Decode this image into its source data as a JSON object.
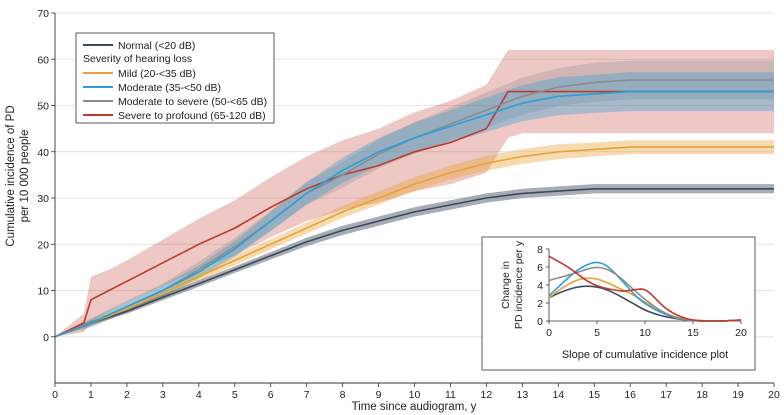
{
  "colors": {
    "normal": "#3b4a5a",
    "mild": "#e8a23a",
    "moderate": "#2b9fd8",
    "modsevere": "#8c8c8c",
    "severe": "#c0392b",
    "grid": "#dcdcdc"
  },
  "chart_data": [
    {
      "type": "line",
      "xlabel": "Time since audiogram, y",
      "ylabel_line1": "Cumulative incidence of PD",
      "ylabel_line2": "per 10 000 people",
      "xlim": [
        0,
        20
      ],
      "ylim": [
        -10,
        70
      ],
      "x_ticks": [
        0,
        1,
        2,
        3,
        4,
        5,
        6,
        7,
        8,
        9,
        10,
        11,
        12,
        13,
        14,
        15,
        16,
        17,
        18,
        19,
        20
      ],
      "y_ticks": [
        0,
        10,
        20,
        30,
        40,
        50,
        60,
        70
      ],
      "grid": "horizontal",
      "legend": {
        "placement": "top-left",
        "heading": "Severity of hearing loss",
        "entries": [
          {
            "key": "normal",
            "label": "Normal (<20 dB)"
          },
          {
            "key": "mild",
            "label": "Mild (20-<35 dB)"
          },
          {
            "key": "moderate",
            "label": "Moderate (35-<50 dB)"
          },
          {
            "key": "modsevere",
            "label": "Moderate to severe (50-<65 dB)"
          },
          {
            "key": "severe",
            "label": "Severe to profound (65-120 dB)"
          }
        ]
      },
      "series": [
        {
          "key": "normal",
          "name": "Normal (<20 dB)",
          "x": [
            0,
            1,
            2,
            3,
            4,
            5,
            6,
            7,
            8,
            9,
            10,
            11,
            12,
            13,
            14,
            15,
            16,
            17,
            18,
            19,
            20
          ],
          "y": [
            0,
            3,
            5.5,
            8.5,
            11.5,
            14.5,
            17.5,
            20.5,
            23,
            25,
            27,
            28.5,
            30,
            31,
            31.5,
            32,
            32,
            32,
            32,
            32,
            32
          ],
          "lower": [
            0,
            2.6,
            5,
            7.9,
            10.8,
            13.8,
            16.7,
            19.6,
            22,
            24,
            26,
            27.5,
            29,
            30,
            30.5,
            31,
            31,
            31,
            31,
            31,
            31
          ],
          "upper": [
            0,
            3.4,
            6,
            9.1,
            12.2,
            15.2,
            18.3,
            21.4,
            24,
            26,
            28,
            29.5,
            31,
            32,
            32.5,
            33,
            33,
            33,
            33,
            33,
            33
          ]
        },
        {
          "key": "mild",
          "name": "Mild (20-<35 dB)",
          "x": [
            0,
            1,
            2,
            3,
            4,
            5,
            6,
            7,
            8,
            9,
            10,
            11,
            12,
            13,
            14,
            15,
            16,
            17,
            18,
            19,
            20
          ],
          "y": [
            0,
            3,
            6,
            9.5,
            13,
            16.5,
            20,
            23.5,
            27,
            30,
            33,
            35.5,
            37.5,
            39,
            40,
            40.5,
            41,
            41,
            41,
            41,
            41
          ],
          "lower": [
            0,
            2.5,
            5.3,
            8.7,
            12.1,
            15.5,
            18.9,
            22.3,
            25.7,
            28.6,
            31.5,
            34,
            35.9,
            37.4,
            38.4,
            39,
            39.5,
            39.5,
            39.5,
            39.5,
            39.5
          ],
          "upper": [
            0,
            3.5,
            6.7,
            10.3,
            13.9,
            17.5,
            21.1,
            24.7,
            28.3,
            31.4,
            34.5,
            37,
            39.1,
            40.6,
            41.6,
            42,
            42.5,
            42.5,
            42.5,
            42.5,
            42.5
          ]
        },
        {
          "key": "moderate",
          "name": "Moderate (35-<50 dB)",
          "x": [
            0,
            1,
            2,
            3,
            4,
            5,
            6,
            7,
            8,
            9,
            10,
            11,
            12,
            13,
            14,
            15,
            16,
            17,
            18,
            19,
            20
          ],
          "y": [
            0,
            3,
            6.5,
            10,
            14,
            19,
            25,
            31,
            36,
            40,
            43,
            45.5,
            48,
            50.5,
            52,
            52.5,
            53,
            53,
            53,
            53,
            53
          ],
          "lower": [
            0,
            2.2,
            5.5,
            8.8,
            12.6,
            17.3,
            23,
            28.6,
            33.3,
            37,
            39.7,
            42,
            44.3,
            46.6,
            47.9,
            48.4,
            48.8,
            48.8,
            48.8,
            48.8,
            48.8
          ],
          "upper": [
            0,
            3.8,
            7.5,
            11.2,
            15.4,
            20.7,
            27,
            33.4,
            38.7,
            43,
            46.3,
            49,
            51.7,
            54.4,
            56.1,
            56.6,
            57.2,
            57.2,
            57.2,
            57.2,
            57.2
          ]
        },
        {
          "key": "modsevere",
          "name": "Moderate to severe (50-<65 dB)",
          "x": [
            0,
            1,
            2,
            3,
            4,
            5,
            6,
            7,
            8,
            9,
            10,
            11,
            12,
            13,
            14,
            15,
            16,
            17,
            18,
            19,
            20
          ],
          "y": [
            0,
            3,
            6.5,
            10,
            14.5,
            19.5,
            25,
            31,
            35,
            39.5,
            43,
            46,
            49,
            52,
            54,
            55,
            55.5,
            55.5,
            55.5,
            55.5,
            55.5
          ],
          "lower": [
            0,
            2,
            5.2,
            8.5,
            12.8,
            17.6,
            22.8,
            28.5,
            32.2,
            36.4,
            39.6,
            42.4,
            45.2,
            48,
            49.9,
            50.8,
            51.3,
            51.3,
            51.3,
            51.3,
            51.3
          ],
          "upper": [
            0,
            4,
            7.8,
            11.5,
            16.2,
            21.4,
            27.2,
            33.5,
            37.8,
            42.6,
            46.4,
            49.6,
            52.8,
            56,
            58.1,
            59.2,
            59.7,
            59.7,
            59.7,
            59.7,
            59.7
          ]
        },
        {
          "key": "severe",
          "name": "Severe to profound (65-120 dB)",
          "x": [
            0,
            0.8,
            1,
            1.5,
            2,
            3,
            4,
            5,
            6,
            7,
            8,
            9,
            10,
            11,
            12,
            12.6,
            13,
            14,
            15,
            16,
            17,
            18,
            19,
            20
          ],
          "y": [
            0,
            3,
            8,
            10,
            12,
            16,
            20,
            23.5,
            28,
            32,
            35,
            37,
            40,
            42,
            45,
            53,
            53,
            53,
            53,
            53,
            53,
            53,
            53,
            53
          ],
          "lower": [
            0,
            1,
            3,
            5.5,
            7.5,
            11,
            14.5,
            17.5,
            21.5,
            25,
            27.5,
            29,
            31.5,
            33,
            35.5,
            43,
            44,
            44,
            44,
            44,
            44,
            44,
            44,
            44
          ],
          "upper": [
            0,
            5,
            13,
            14.5,
            16.5,
            21,
            25.5,
            29.5,
            34.5,
            39,
            42.5,
            45,
            48.5,
            51,
            54.5,
            62,
            62,
            62,
            62,
            62,
            62,
            62,
            62,
            62
          ]
        }
      ]
    },
    {
      "type": "line",
      "xlabel": "Slope of cumulative incidence plot",
      "ylabel_line1": "Change in",
      "ylabel_line2": "PD incidence per y",
      "xlim": [
        0,
        20
      ],
      "ylim": [
        0,
        8
      ],
      "x_ticks": [
        0,
        5,
        10,
        15,
        20
      ],
      "y_ticks": [
        0,
        2,
        4,
        6,
        8
      ],
      "series": [
        {
          "key": "normal",
          "x": [
            0,
            1,
            2,
            3,
            4,
            5,
            6,
            7,
            8,
            9,
            10,
            11,
            12,
            13,
            14,
            15,
            16,
            17,
            18,
            19,
            20
          ],
          "y": [
            2.6,
            3.1,
            3.5,
            3.8,
            3.9,
            3.8,
            3.5,
            3.0,
            2.4,
            1.8,
            1.2,
            0.8,
            0.5,
            0.3,
            0.15,
            0.05,
            0,
            0,
            0,
            0.05,
            0.1
          ]
        },
        {
          "key": "mild",
          "x": [
            0,
            1,
            2,
            3,
            4,
            5,
            6,
            7,
            8,
            9,
            10,
            11,
            12,
            13,
            14,
            15,
            16,
            17,
            18,
            19,
            20
          ],
          "y": [
            2.6,
            3.4,
            4.1,
            4.6,
            4.8,
            4.7,
            4.3,
            3.8,
            3.3,
            2.8,
            2.1,
            1.5,
            0.9,
            0.5,
            0.25,
            0.1,
            0.05,
            0,
            0,
            0.05,
            0.1
          ]
        },
        {
          "key": "moderate",
          "x": [
            0,
            1,
            2,
            3,
            4,
            5,
            6,
            7,
            8,
            9,
            10,
            11,
            12,
            13,
            14,
            15,
            16,
            17,
            18,
            19,
            20
          ],
          "y": [
            2.8,
            3.8,
            4.8,
            5.7,
            6.3,
            6.6,
            6.2,
            5.2,
            4.0,
            2.8,
            1.9,
            1.3,
            0.8,
            0.4,
            0.15,
            0.05,
            0,
            0,
            0,
            0.05,
            0.1
          ]
        },
        {
          "key": "modsevere",
          "x": [
            0,
            1,
            2,
            3,
            4,
            5,
            6,
            7,
            8,
            9,
            10,
            11,
            12,
            13,
            14,
            15,
            16,
            17,
            18,
            19,
            20
          ],
          "y": [
            4.5,
            4.8,
            5.1,
            5.4,
            5.8,
            6.0,
            5.8,
            5.2,
            4.3,
            3.3,
            2.4,
            1.6,
            0.9,
            0.45,
            0.2,
            0.05,
            0,
            0,
            0,
            0.05,
            0.1
          ]
        },
        {
          "key": "severe",
          "x": [
            0,
            1,
            2,
            3,
            4,
            5,
            6,
            7,
            8,
            9,
            10,
            11,
            12,
            13,
            14,
            15,
            16,
            17,
            18,
            19,
            20
          ],
          "y": [
            7.2,
            6.6,
            6.0,
            5.2,
            4.4,
            3.9,
            3.6,
            3.4,
            3.3,
            3.5,
            3.6,
            2.6,
            1.5,
            0.8,
            0.35,
            0.1,
            0,
            0,
            0,
            0.05,
            0.1
          ]
        }
      ]
    }
  ]
}
